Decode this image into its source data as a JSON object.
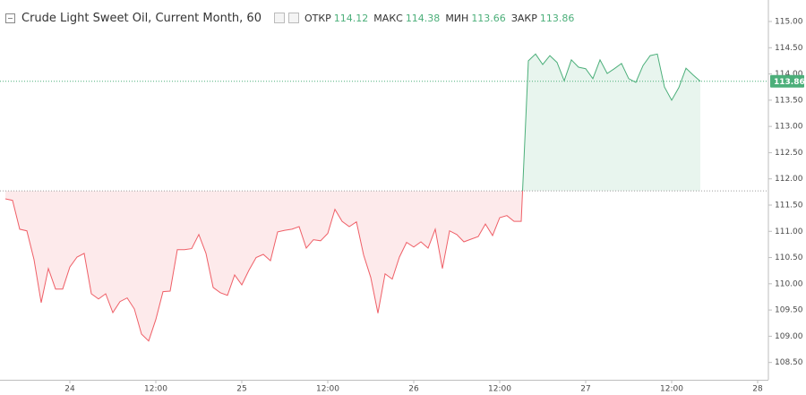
{
  "chart_data": {
    "type": "baseline",
    "title": "Crude Light Sweet Oil, Current Month, 60",
    "ohlc": {
      "open_label": "ОТКР",
      "open": 114.12,
      "high_label": "МАКС",
      "high": 114.38,
      "low_label": "МИН",
      "low": 113.66,
      "close_label": "ЗАКР",
      "close": 113.86
    },
    "baseline": 111.77,
    "up_color": "#4caf7a",
    "down_color": "#ef5f67",
    "x": [
      -9,
      -8,
      -7,
      -6,
      -5,
      -4,
      -3,
      -2,
      -1,
      0,
      1,
      2,
      3,
      4,
      5,
      6,
      7,
      8,
      9,
      10,
      11,
      12,
      13,
      14,
      15,
      16,
      17,
      18,
      19,
      20,
      21,
      22,
      23,
      24,
      25,
      26,
      27,
      28,
      29,
      30,
      31,
      32,
      33,
      34,
      35,
      36,
      37,
      38,
      39,
      40,
      41,
      42,
      43,
      44,
      45,
      46,
      47,
      48,
      49,
      50,
      51,
      52,
      53,
      54,
      55,
      56,
      57,
      58,
      59,
      60,
      61,
      62,
      63,
      64,
      65,
      66,
      67,
      68,
      69,
      70,
      71,
      72,
      73,
      74,
      75,
      76,
      77,
      78,
      79,
      80,
      81,
      82,
      83,
      84,
      85,
      86,
      87,
      88
    ],
    "values": [
      111.62,
      111.59,
      111.04,
      111.01,
      110.46,
      109.64,
      110.29,
      109.9,
      109.9,
      110.32,
      110.51,
      110.58,
      109.81,
      109.71,
      109.81,
      109.45,
      109.66,
      109.73,
      109.52,
      109.04,
      108.91,
      109.32,
      109.85,
      109.86,
      110.65,
      110.65,
      110.67,
      110.94,
      110.58,
      109.93,
      109.83,
      109.78,
      110.17,
      109.98,
      110.26,
      110.5,
      110.56,
      110.44,
      110.99,
      111.02,
      111.04,
      111.09,
      110.68,
      110.84,
      110.82,
      110.96,
      111.42,
      111.19,
      111.09,
      111.18,
      110.55,
      110.12,
      109.44,
      110.19,
      110.09,
      110.51,
      110.79,
      110.7,
      110.8,
      110.68,
      111.04,
      110.29,
      111.01,
      110.94,
      110.8,
      110.85,
      110.9,
      111.14,
      110.92,
      111.26,
      111.3,
      111.19,
      111.19,
      114.25,
      114.38,
      114.18,
      114.35,
      114.22,
      113.87,
      114.27,
      114.13,
      114.1,
      113.91,
      114.27,
      114.01,
      114.1,
      114.2,
      113.91,
      113.84,
      114.16,
      114.35,
      114.38,
      113.75,
      113.5,
      113.74,
      114.11,
      113.98,
      113.86
    ],
    "xlim": [
      -9.75,
      97.5
    ],
    "xticks": [
      {
        "value": 0,
        "label": "24"
      },
      {
        "value": 12,
        "label": "12:00"
      },
      {
        "value": 24,
        "label": "25"
      },
      {
        "value": 36,
        "label": "12:00"
      },
      {
        "value": 48,
        "label": "26"
      },
      {
        "value": 60,
        "label": "12:00"
      },
      {
        "value": 72,
        "label": "27"
      },
      {
        "value": 84,
        "label": "12:00"
      },
      {
        "value": 96,
        "label": "28"
      }
    ],
    "ylim": [
      108.17,
      115.41
    ],
    "yticks": [
      {
        "value": 108.5,
        "label": "108.50"
      },
      {
        "value": 109,
        "label": "109.00"
      },
      {
        "value": 109.5,
        "label": "109.50"
      },
      {
        "value": 110,
        "label": "110.00"
      },
      {
        "value": 110.5,
        "label": "110.50"
      },
      {
        "value": 111,
        "label": "111.00"
      },
      {
        "value": 111.5,
        "label": "111.50"
      },
      {
        "value": 112,
        "label": "112.00"
      },
      {
        "value": 112.5,
        "label": "112.50"
      },
      {
        "value": 113,
        "label": "113.00"
      },
      {
        "value": 113.5,
        "label": "113.50"
      },
      {
        "value": 114,
        "label": "114.00"
      },
      {
        "value": 114.5,
        "label": "114.50"
      },
      {
        "value": 115,
        "label": "115.00"
      }
    ]
  }
}
